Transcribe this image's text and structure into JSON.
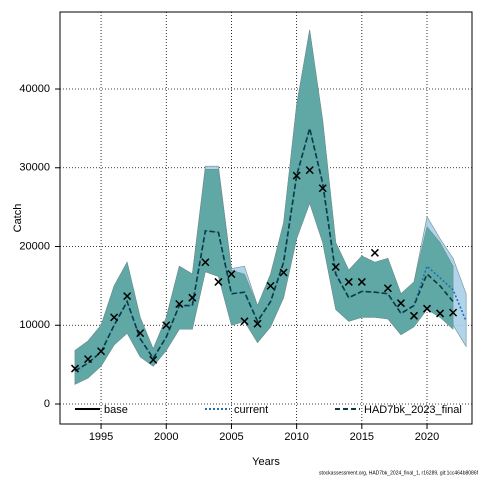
{
  "chart_data": {
    "type": "line",
    "y_label": "Catch",
    "x_label": "Years",
    "footer": "stockassessment.org, HAD7bk_2024_final_1, r16289, git:1cc464b8086f",
    "x": [
      1993,
      1994,
      1995,
      1996,
      1997,
      1998,
      1999,
      2000,
      2001,
      2002,
      2003,
      2004,
      2005,
      2006,
      2007,
      2008,
      2009,
      2010,
      2011,
      2012,
      2013,
      2014,
      2015,
      2016,
      2017,
      2018,
      2019,
      2020,
      2021,
      2022,
      2023
    ],
    "observed": {
      "color": "#000000",
      "values": [
        4500,
        5700,
        6700,
        11000,
        13700,
        9000,
        5600,
        10000,
        12700,
        13500,
        18000,
        15500,
        16500,
        10500,
        10200,
        15000,
        16700,
        29000,
        29700,
        27400,
        17400,
        15500,
        15500,
        19200,
        14700,
        12800,
        11200,
        12100,
        11500,
        11600,
        null
      ]
    },
    "series": [
      {
        "name": "current",
        "color": "#1f6fb4",
        "band_color": "#a9cfe8",
        "dash": "dotted",
        "values": [
          4200,
          5200,
          6600,
          10000,
          13000,
          8300,
          5800,
          8500,
          12500,
          12500,
          22000,
          21800,
          14000,
          14200,
          10500,
          13000,
          18000,
          29000,
          35000,
          28000,
          16500,
          13500,
          14300,
          14200,
          14000,
          11500,
          12500,
          17500,
          16000,
          14500,
          10500
        ],
        "upper": [
          6800,
          8000,
          10000,
          15000,
          18000,
          11000,
          7000,
          11000,
          17500,
          16500,
          30200,
          30200,
          17200,
          17500,
          12500,
          16500,
          23000,
          38000,
          47500,
          36000,
          20500,
          17000,
          18800,
          18000,
          18500,
          14000,
          15500,
          23800,
          21000,
          18500,
          14000
        ],
        "lower": [
          2500,
          3300,
          4800,
          7500,
          9000,
          6000,
          4800,
          6800,
          9500,
          9500,
          16800,
          16200,
          10000,
          10500,
          7800,
          9800,
          13500,
          21000,
          25500,
          20500,
          12000,
          10500,
          11000,
          11000,
          10800,
          8800,
          9800,
          12500,
          11500,
          10000,
          7300
        ]
      },
      {
        "name": "HAD7bk_2023_final",
        "color": "#0b3b3b",
        "band_color": "#5fa8a6",
        "dash": "dashed",
        "values": [
          4200,
          5200,
          6600,
          10000,
          13000,
          8300,
          5800,
          8500,
          12500,
          12500,
          22000,
          21800,
          14000,
          14200,
          10500,
          13000,
          18000,
          29000,
          35000,
          28000,
          16500,
          13500,
          14300,
          14200,
          14000,
          11500,
          12500,
          16500,
          15000,
          13000,
          null
        ],
        "upper": [
          6800,
          8000,
          10000,
          15000,
          18000,
          11000,
          7000,
          11000,
          17500,
          16500,
          29800,
          29800,
          17000,
          16500,
          12500,
          16500,
          23000,
          38000,
          47500,
          36000,
          20500,
          17000,
          18800,
          18000,
          18500,
          14000,
          15500,
          22500,
          20500,
          17500,
          null
        ],
        "lower": [
          2500,
          3300,
          4800,
          7500,
          9000,
          6000,
          4800,
          6800,
          9500,
          9500,
          16800,
          16200,
          10000,
          10500,
          7800,
          9800,
          13500,
          21000,
          25500,
          20500,
          12000,
          10500,
          11000,
          11000,
          10800,
          8800,
          9800,
          12000,
          11000,
          9500,
          null
        ]
      }
    ],
    "legend": [
      {
        "name": "base",
        "color": "#000000",
        "dash": "solid"
      },
      {
        "name": "current",
        "color": "#1f6fb4",
        "dash": "dotted"
      },
      {
        "name": "HAD7bk_2023_final",
        "color": "#0b3b3b",
        "dash": "dashed"
      }
    ],
    "xlim": [
      1991.85,
      2023.45
    ],
    "ylim": [
      -2540,
      49780
    ],
    "xticks": [
      1995,
      2000,
      2005,
      2010,
      2015,
      2020
    ],
    "yticks": [
      0,
      10000,
      20000,
      30000,
      40000
    ],
    "grid": true
  }
}
